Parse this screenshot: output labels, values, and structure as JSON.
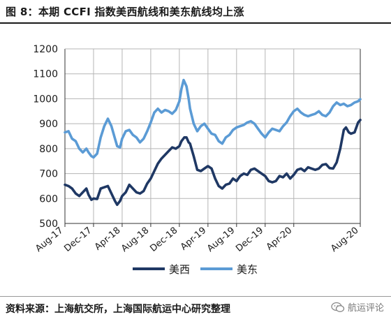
{
  "figure": {
    "title": "图 8：本期 CCFI 指数美西航线和美东航线均上涨",
    "source": "资料来源：上海航交所，上海国际航运中心研究整理",
    "watermark": "航运评论"
  },
  "chart_data": {
    "type": "line",
    "title": "",
    "xlabel": "",
    "ylabel": "",
    "ylim": [
      500,
      1200
    ],
    "yticks": [
      500,
      600,
      700,
      800,
      900,
      1000,
      1100,
      1200
    ],
    "xtick_labels": [
      "Aug-17",
      "Dec-17",
      "Apr-18",
      "Aug-18",
      "Dec-18",
      "Apr-19",
      "Aug-19",
      "Dec-19",
      "Apr-20",
      "Aug-20"
    ],
    "x_axis": "weekly, Aug-17 to Aug-20 (months since Aug-17)",
    "grid": true,
    "legend": "bottom-center",
    "colors": {
      "美西": "#1f3864",
      "美东": "#5b9bd5"
    },
    "series": [
      {
        "name": "美西",
        "color": "#1f3864",
        "points": [
          [
            0,
            655
          ],
          [
            0.5,
            650
          ],
          [
            1,
            640
          ],
          [
            1.5,
            620
          ],
          [
            2,
            610
          ],
          [
            2.5,
            625
          ],
          [
            3,
            640
          ],
          [
            3.3,
            615
          ],
          [
            3.7,
            595
          ],
          [
            4,
            600
          ],
          [
            4.5,
            598
          ],
          [
            5,
            640
          ],
          [
            5.5,
            645
          ],
          [
            6,
            650
          ],
          [
            6.5,
            620
          ],
          [
            7,
            590
          ],
          [
            7.3,
            575
          ],
          [
            7.7,
            590
          ],
          [
            8,
            610
          ],
          [
            8.5,
            625
          ],
          [
            9,
            655
          ],
          [
            9.5,
            640
          ],
          [
            10,
            625
          ],
          [
            10.5,
            620
          ],
          [
            11,
            630
          ],
          [
            11.5,
            660
          ],
          [
            12,
            680
          ],
          [
            12.5,
            710
          ],
          [
            13,
            740
          ],
          [
            13.5,
            760
          ],
          [
            14,
            775
          ],
          [
            14.5,
            790
          ],
          [
            15,
            805
          ],
          [
            15.5,
            800
          ],
          [
            16,
            810
          ],
          [
            16.3,
            830
          ],
          [
            16.7,
            845
          ],
          [
            17,
            845
          ],
          [
            17.3,
            825
          ],
          [
            17.5,
            820
          ],
          [
            18,
            770
          ],
          [
            18.5,
            715
          ],
          [
            19,
            710
          ],
          [
            19.5,
            720
          ],
          [
            20,
            730
          ],
          [
            20.5,
            720
          ],
          [
            21,
            680
          ],
          [
            21.5,
            650
          ],
          [
            22,
            640
          ],
          [
            22.5,
            655
          ],
          [
            23,
            660
          ],
          [
            23.5,
            680
          ],
          [
            24,
            670
          ],
          [
            24.5,
            690
          ],
          [
            25,
            700
          ],
          [
            25.5,
            695
          ],
          [
            26,
            715
          ],
          [
            26.5,
            720
          ],
          [
            27,
            710
          ],
          [
            27.5,
            700
          ],
          [
            28,
            690
          ],
          [
            28.5,
            670
          ],
          [
            29,
            665
          ],
          [
            29.5,
            670
          ],
          [
            30,
            690
          ],
          [
            30.5,
            685
          ],
          [
            31,
            700
          ],
          [
            31.5,
            680
          ],
          [
            32,
            695
          ],
          [
            32.5,
            715
          ],
          [
            33,
            720
          ],
          [
            33.5,
            710
          ],
          [
            34,
            725
          ],
          [
            34.5,
            720
          ],
          [
            35,
            715
          ],
          [
            35.5,
            720
          ],
          [
            36,
            735
          ],
          [
            36.5,
            738
          ],
          [
            37,
            722
          ],
          [
            37.5,
            720
          ],
          [
            38,
            745
          ],
          [
            38.5,
            800
          ],
          [
            39,
            875
          ],
          [
            39.3,
            885
          ],
          [
            39.7,
            865
          ],
          [
            40,
            860
          ],
          [
            40.5,
            865
          ],
          [
            41,
            905
          ],
          [
            41.3,
            915
          ]
        ]
      },
      {
        "name": "美东",
        "color": "#5b9bd5",
        "points": [
          [
            0,
            865
          ],
          [
            0.5,
            870
          ],
          [
            1,
            840
          ],
          [
            1.5,
            830
          ],
          [
            2,
            800
          ],
          [
            2.5,
            785
          ],
          [
            3,
            800
          ],
          [
            3.3,
            785
          ],
          [
            3.7,
            770
          ],
          [
            4,
            765
          ],
          [
            4.5,
            780
          ],
          [
            5,
            845
          ],
          [
            5.5,
            890
          ],
          [
            6,
            920
          ],
          [
            6.5,
            890
          ],
          [
            7,
            840
          ],
          [
            7.3,
            810
          ],
          [
            7.7,
            805
          ],
          [
            8,
            840
          ],
          [
            8.5,
            870
          ],
          [
            9,
            875
          ],
          [
            9.5,
            855
          ],
          [
            10,
            845
          ],
          [
            10.5,
            825
          ],
          [
            11,
            840
          ],
          [
            11.5,
            870
          ],
          [
            12,
            905
          ],
          [
            12.5,
            945
          ],
          [
            13,
            960
          ],
          [
            13.5,
            945
          ],
          [
            14,
            955
          ],
          [
            14.5,
            950
          ],
          [
            15,
            940
          ],
          [
            15.5,
            955
          ],
          [
            16,
            990
          ],
          [
            16.3,
            1040
          ],
          [
            16.6,
            1075
          ],
          [
            17,
            1050
          ],
          [
            17.3,
            1000
          ],
          [
            17.5,
            960
          ],
          [
            18,
            900
          ],
          [
            18.5,
            870
          ],
          [
            19,
            890
          ],
          [
            19.5,
            900
          ],
          [
            20,
            880
          ],
          [
            20.5,
            860
          ],
          [
            21,
            855
          ],
          [
            21.5,
            830
          ],
          [
            22,
            820
          ],
          [
            22.5,
            845
          ],
          [
            23,
            855
          ],
          [
            23.5,
            875
          ],
          [
            24,
            885
          ],
          [
            24.5,
            890
          ],
          [
            25,
            895
          ],
          [
            25.5,
            905
          ],
          [
            26,
            910
          ],
          [
            26.5,
            900
          ],
          [
            27,
            880
          ],
          [
            27.5,
            860
          ],
          [
            28,
            845
          ],
          [
            28.5,
            865
          ],
          [
            29,
            880
          ],
          [
            29.5,
            875
          ],
          [
            30,
            870
          ],
          [
            30.5,
            890
          ],
          [
            31,
            905
          ],
          [
            31.5,
            930
          ],
          [
            32,
            950
          ],
          [
            32.5,
            960
          ],
          [
            33,
            945
          ],
          [
            33.5,
            935
          ],
          [
            34,
            930
          ],
          [
            34.5,
            935
          ],
          [
            35,
            940
          ],
          [
            35.5,
            950
          ],
          [
            36,
            935
          ],
          [
            36.5,
            930
          ],
          [
            37,
            945
          ],
          [
            37.5,
            970
          ],
          [
            38,
            985
          ],
          [
            38.5,
            975
          ],
          [
            39,
            980
          ],
          [
            39.5,
            970
          ],
          [
            40,
            975
          ],
          [
            40.5,
            985
          ],
          [
            41,
            990
          ],
          [
            41.3,
            998
          ]
        ]
      }
    ]
  }
}
